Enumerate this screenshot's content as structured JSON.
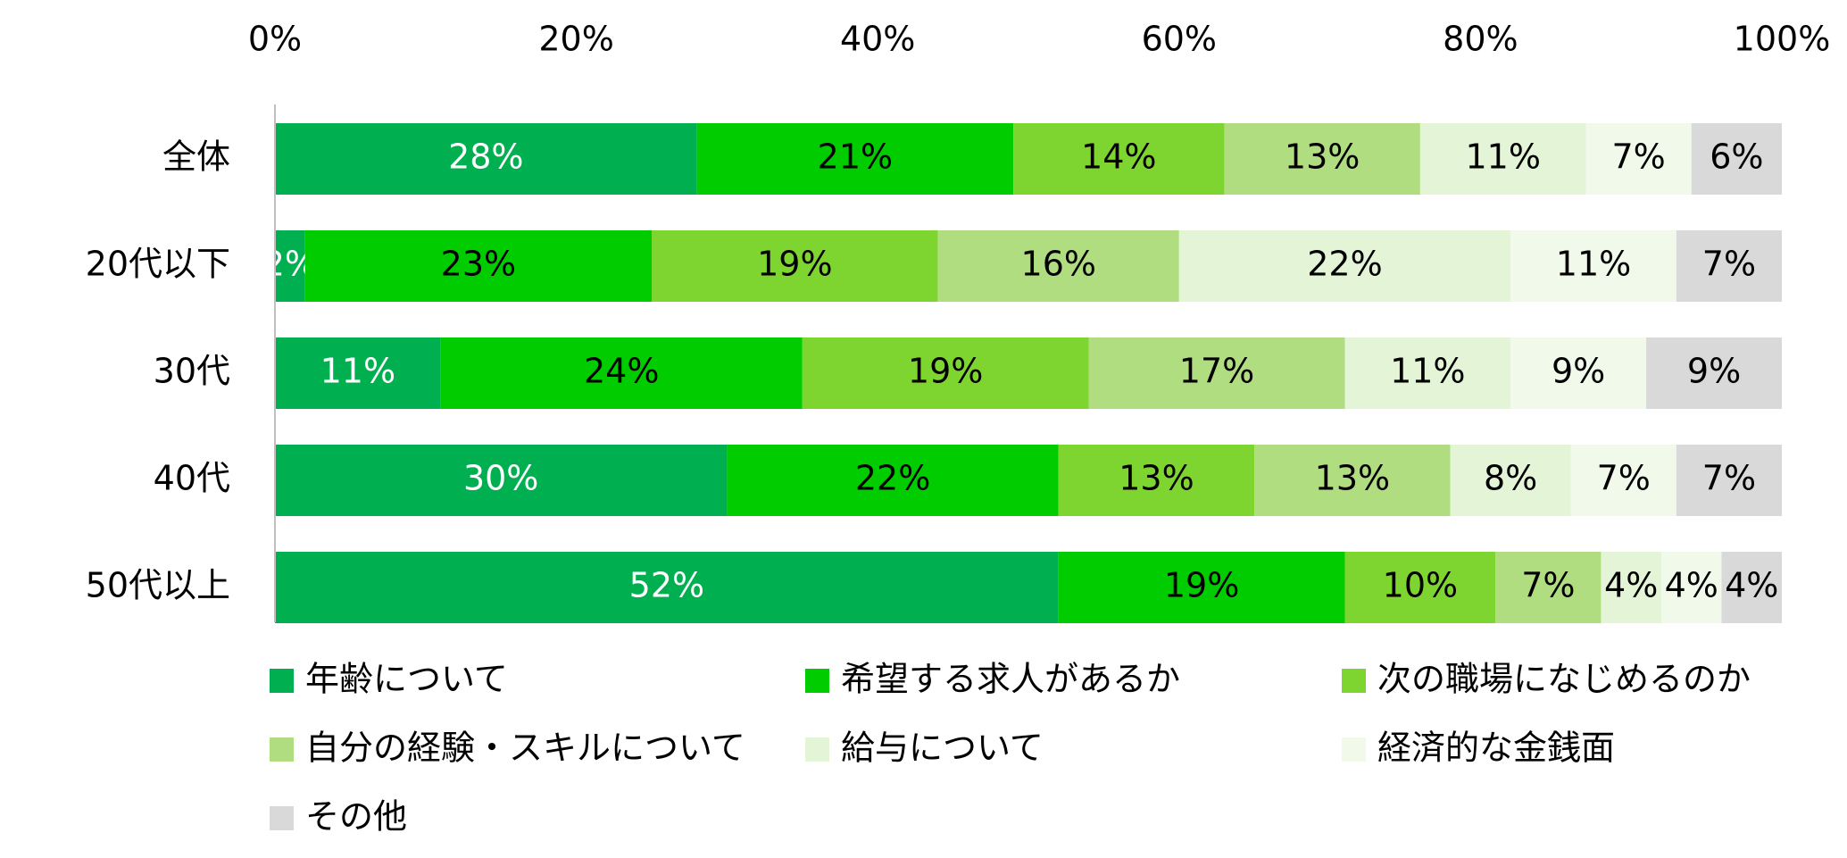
{
  "chart_data": {
    "type": "stacked-bar-horizontal",
    "categories": [
      "全体",
      "20代以下",
      "30代",
      "40代",
      "50代以上"
    ],
    "xlim": [
      0,
      100
    ],
    "xticks": [
      {
        "value": 0,
        "label": "0%"
      },
      {
        "value": 20,
        "label": "20%"
      },
      {
        "value": 40,
        "label": "40%"
      },
      {
        "value": 60,
        "label": "60%"
      },
      {
        "value": 80,
        "label": "80%"
      },
      {
        "value": 100,
        "label": "100%"
      }
    ],
    "legend": "bottom",
    "series": [
      {
        "name": "年齢について",
        "color": "#00b050",
        "label_color": "#ffffff",
        "values": [
          28,
          2,
          11,
          30,
          52
        ],
        "value_labels": [
          "28%",
          "2%",
          "11%",
          "30%",
          "52%"
        ]
      },
      {
        "name": "希望する求人があるか",
        "color": "#00cc00",
        "label_color": "#000000",
        "values": [
          21,
          23,
          24,
          22,
          19
        ],
        "value_labels": [
          "21%",
          "23%",
          "24%",
          "22%",
          "19%"
        ]
      },
      {
        "name": "次の職場になじめるのか",
        "color": "#7fd530",
        "label_color": "#000000",
        "values": [
          14,
          19,
          19,
          13,
          10
        ],
        "value_labels": [
          "14%",
          "19%",
          "19%",
          "13%",
          "10%"
        ]
      },
      {
        "name": "自分の経験・スキルについて",
        "color": "#afdd80",
        "label_color": "#000000",
        "values": [
          13,
          16,
          17,
          13,
          7
        ],
        "value_labels": [
          "13%",
          "16%",
          "17%",
          "13%",
          "7%"
        ]
      },
      {
        "name": "給与について",
        "color": "#e3f4d7",
        "label_color": "#000000",
        "values": [
          11,
          22,
          11,
          8,
          4
        ],
        "value_labels": [
          "11%",
          "22%",
          "11%",
          "8%",
          "4%"
        ]
      },
      {
        "name": "経済的な金銭面",
        "color": "#f0f9ea",
        "label_color": "#000000",
        "values": [
          7,
          11,
          9,
          7,
          4
        ],
        "value_labels": [
          "7%",
          "11%",
          "9%",
          "7%",
          "4%"
        ]
      },
      {
        "name": "その他",
        "color": "#d9d9d9",
        "label_color": "#000000",
        "values": [
          6,
          7,
          9,
          7,
          4
        ],
        "value_labels": [
          "6%",
          "7%",
          "9%",
          "7%",
          "4%"
        ]
      }
    ]
  }
}
